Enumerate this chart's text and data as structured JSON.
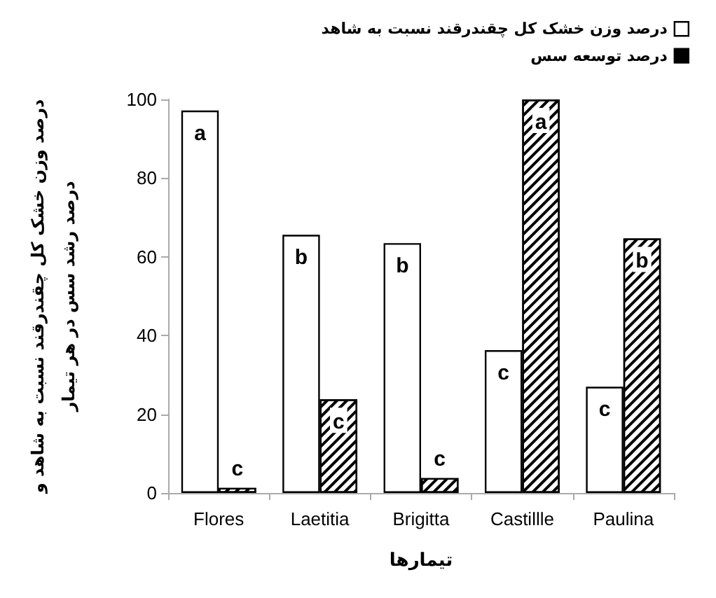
{
  "chart_data": {
    "type": "bar",
    "xlabel": "تیمارها",
    "ylabel": "درصد وزن خشک کل چقندرقند نسبت به شاهد و\nدرصد رشد سس در هر تیمار",
    "categories": [
      "Flores",
      "Laetitia",
      "Brigitta",
      "Castillle",
      "Paulina"
    ],
    "series": [
      {
        "name": "درصد وزن خشک کل چقندرقند نسبت به شاهد",
        "color": "#ffffff",
        "values": [
          97.2,
          65.6,
          63.5,
          36.3,
          27
        ],
        "value_labels": [
          "a",
          "b",
          "b",
          "c",
          "c"
        ]
      },
      {
        "name": "درصد توسعه سس",
        "color": "#000000",
        "values": [
          1.3,
          23.8,
          3.8,
          100,
          64.7
        ],
        "value_labels": [
          "c",
          "c",
          "c",
          "a",
          "b"
        ]
      }
    ],
    "ylim": [
      0,
      100
    ],
    "yticks": [
      0,
      20,
      40,
      60,
      80,
      100
    ],
    "grid": false,
    "legend": "top right"
  }
}
